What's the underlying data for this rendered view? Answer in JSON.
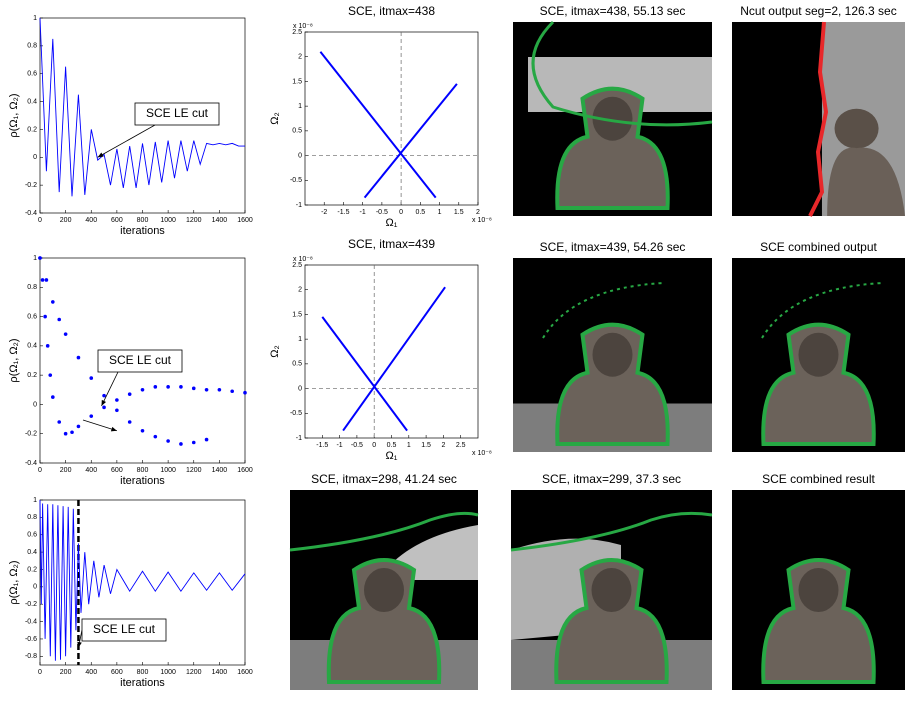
{
  "chart_data": [
    {
      "type": "line",
      "xlabel": "iterations",
      "ylabel": "ρ(Ω₁, Ω₂)",
      "xlim": [
        0,
        1600
      ],
      "ylim": [
        -0.4,
        1
      ],
      "xticks": [
        0,
        200,
        400,
        600,
        800,
        1000,
        1200,
        1400,
        1600
      ],
      "yticks": [
        -0.4,
        -0.2,
        0,
        0.2,
        0.4,
        0.6,
        0.8,
        1
      ],
      "series": [
        {
          "color": "#0000ff",
          "x": [
            0,
            50,
            100,
            150,
            200,
            250,
            300,
            350,
            400,
            450,
            500,
            550,
            600,
            650,
            700,
            750,
            800,
            850,
            900,
            950,
            1000,
            1050,
            1100,
            1150,
            1200,
            1250,
            1300,
            1350,
            1400,
            1450,
            1500,
            1550,
            1600
          ],
          "values": [
            1,
            -0.1,
            0.85,
            -0.25,
            0.65,
            -0.28,
            0.45,
            -0.27,
            0.2,
            -0.02,
            0.02,
            -0.2,
            0.06,
            -0.22,
            0.08,
            -0.22,
            0.1,
            -0.2,
            0.11,
            -0.18,
            0.12,
            -0.15,
            0.12,
            -0.1,
            0.12,
            -0.05,
            0.1,
            0.09,
            0.1,
            0.09,
            0.1,
            0.08,
            0.08
          ]
        }
      ],
      "annotation": {
        "text": "SCE LE cut",
        "points": [
          [
            450,
            0
          ]
        ]
      }
    },
    {
      "type": "line",
      "title": "SCE, itmax=438",
      "xlabel": "Ω₁",
      "ylabel": "Ω₂",
      "axis_exponent": "x 10⁻⁸",
      "xlim": [
        -2.5,
        2
      ],
      "ylim": [
        -1,
        2.5
      ],
      "xticks": [
        -2,
        -1.5,
        -1,
        -0.5,
        0,
        0.5,
        1,
        1.5,
        2
      ],
      "yticks": [
        -1,
        -0.5,
        0,
        0.5,
        1,
        1.5,
        2,
        2.5
      ],
      "reference_lines": {
        "x": 0,
        "y": 0
      },
      "series": [
        {
          "color": "#0000ff",
          "x": [
            -2.1,
            0.9
          ],
          "values": [
            2.1,
            -0.85
          ]
        },
        {
          "color": "#0000ff",
          "x": [
            -0.95,
            1.45
          ],
          "values": [
            -0.85,
            1.45
          ]
        }
      ]
    },
    {
      "type": "scatter",
      "xlabel": "iterations",
      "ylabel": "ρ(Ω₁, Ω₂)",
      "xlim": [
        0,
        1600
      ],
      "ylim": [
        -0.4,
        1
      ],
      "xticks": [
        0,
        200,
        400,
        600,
        800,
        1000,
        1200,
        1400,
        1600
      ],
      "yticks": [
        -0.4,
        -0.2,
        0,
        0.2,
        0.4,
        0.6,
        0.8,
        1
      ],
      "series": [
        {
          "color": "#0000ff",
          "x": [
            0,
            20,
            40,
            60,
            80,
            100,
            150,
            200,
            250,
            300,
            400,
            500,
            600,
            700,
            800,
            900,
            1000,
            1100,
            1200,
            1300,
            1400,
            1500,
            1600
          ],
          "values": [
            1,
            0.85,
            0.6,
            0.4,
            0.2,
            0.05,
            -0.12,
            -0.2,
            -0.19,
            -0.15,
            -0.08,
            -0.02,
            0.03,
            0.07,
            0.1,
            0.12,
            0.12,
            0.12,
            0.11,
            0.1,
            0.1,
            0.09,
            0.08
          ]
        },
        {
          "color": "#0000ff",
          "x": [
            0,
            50,
            100,
            150,
            200,
            300,
            400,
            500,
            600,
            700,
            800,
            900,
            1000,
            1100,
            1200,
            1300
          ],
          "values": [
            1,
            0.85,
            0.7,
            0.58,
            0.48,
            0.32,
            0.18,
            0.06,
            -0.04,
            -0.12,
            -0.18,
            -0.22,
            -0.25,
            -0.27,
            -0.26,
            -0.24
          ]
        }
      ],
      "annotation": {
        "text": "SCE LE cut",
        "points": [
          [
            480,
            -0.01
          ],
          [
            600,
            -0.18
          ]
        ]
      }
    },
    {
      "type": "line",
      "title": "SCE, itmax=439",
      "xlabel": "Ω₁",
      "ylabel": "Ω₂",
      "axis_exponent": "x 10⁻⁸",
      "xlim": [
        -2,
        3
      ],
      "ylim": [
        -1,
        2.5
      ],
      "xticks": [
        -1.5,
        -1,
        -0.5,
        0,
        0.5,
        1,
        1.5,
        2,
        2.5
      ],
      "yticks": [
        -1,
        -0.5,
        0,
        0.5,
        1,
        1.5,
        2,
        2.5
      ],
      "reference_lines": {
        "x": 0,
        "y": 0
      },
      "series": [
        {
          "color": "#0000ff",
          "x": [
            -1.5,
            0.95
          ],
          "values": [
            1.45,
            -0.85
          ]
        },
        {
          "color": "#0000ff",
          "x": [
            -0.9,
            2.05
          ],
          "values": [
            -0.85,
            2.05
          ]
        }
      ]
    },
    {
      "type": "line",
      "xlabel": "iterations",
      "ylabel": "ρ(Ω₁, Ω₂)",
      "xlim": [
        0,
        1600
      ],
      "ylim": [
        -0.9,
        1
      ],
      "xticks": [
        0,
        200,
        400,
        600,
        800,
        1000,
        1200,
        1400,
        1600
      ],
      "yticks": [
        -0.8,
        -0.6,
        -0.4,
        -0.2,
        0,
        0.2,
        0.4,
        0.6,
        0.8,
        1
      ],
      "reference_lines": {
        "x": 300
      },
      "series": [
        {
          "color": "#0000ff",
          "x": [
            0,
            10,
            20,
            40,
            60,
            80,
            100,
            120,
            140,
            160,
            180,
            200,
            220,
            240,
            260,
            280,
            300,
            320,
            350,
            380,
            420,
            460,
            500,
            550,
            600,
            700,
            800,
            900,
            1000,
            1100,
            1200,
            1300,
            1400,
            1500,
            1600
          ],
          "values": [
            1,
            -0.2,
            0.96,
            -0.6,
            0.95,
            -0.8,
            0.95,
            -0.85,
            0.94,
            -0.84,
            0.93,
            -0.8,
            0.92,
            -0.7,
            0.9,
            -0.5,
            0.5,
            -0.3,
            0.4,
            -0.2,
            0.3,
            -0.12,
            0.25,
            -0.08,
            0.2,
            -0.05,
            0.18,
            -0.05,
            0.17,
            -0.05,
            0.16,
            -0.04,
            0.16,
            -0.04,
            0.15
          ]
        }
      ],
      "annotation": {
        "text": "SCE LE cut",
        "points": [
          [
            300,
            -0.7
          ]
        ]
      }
    }
  ],
  "images": [
    {
      "title": "SCE, itmax=438, 55.13 sec"
    },
    {
      "title": "Ncut output seg=2, 126.3 sec"
    },
    {
      "title": "SCE, itmax=439, 54.26 sec"
    },
    {
      "title": "SCE combined output"
    },
    {
      "title": "SCE, itmax=298, 41.24 sec"
    },
    {
      "title": "SCE, itmax=299, 37.3 sec"
    },
    {
      "title": "SCE combined result"
    }
  ]
}
